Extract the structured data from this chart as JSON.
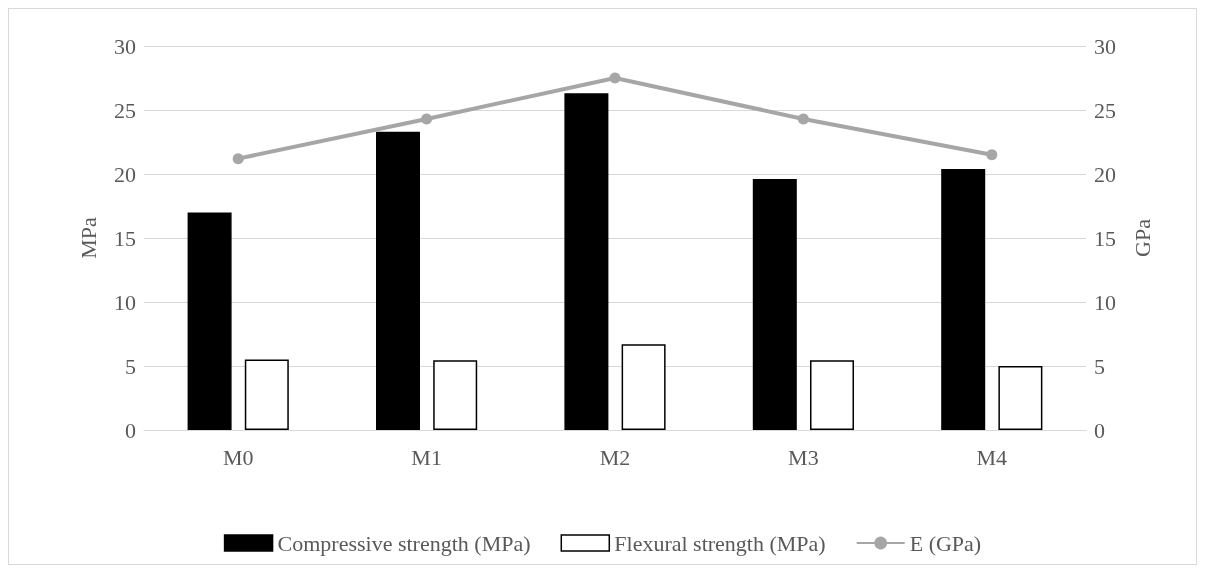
{
  "chart_data": {
    "type": "bar",
    "categories": [
      "M0",
      "M1",
      "M2",
      "M3",
      "M4"
    ],
    "ylabel": "MPa",
    "y2label": "GPa",
    "series": [
      {
        "name": "Compressive strength (MPa)",
        "color": "#000000",
        "values": [
          17.0,
          23.3,
          26.3,
          19.6,
          20.4
        ]
      },
      {
        "name": "Flexural strength (MPa)",
        "color": "#ffffff",
        "values": [
          5.5,
          5.45,
          6.7,
          5.45,
          5.0
        ]
      },
      {
        "name": "E (GPa)",
        "type": "line",
        "axis": "y2",
        "color": "#a6a6a6",
        "marker": "circle",
        "values": [
          21.2,
          24.3,
          27.5,
          24.3,
          21.5
        ]
      }
    ],
    "ylim": [
      0,
      30
    ],
    "yticks": [
      0,
      5,
      10,
      15,
      20,
      25,
      30
    ],
    "y2lim": [
      0,
      30
    ],
    "y2ticks": [
      0,
      5,
      10,
      15,
      20,
      25,
      30
    ],
    "grid": "y",
    "legend": "bottom"
  }
}
